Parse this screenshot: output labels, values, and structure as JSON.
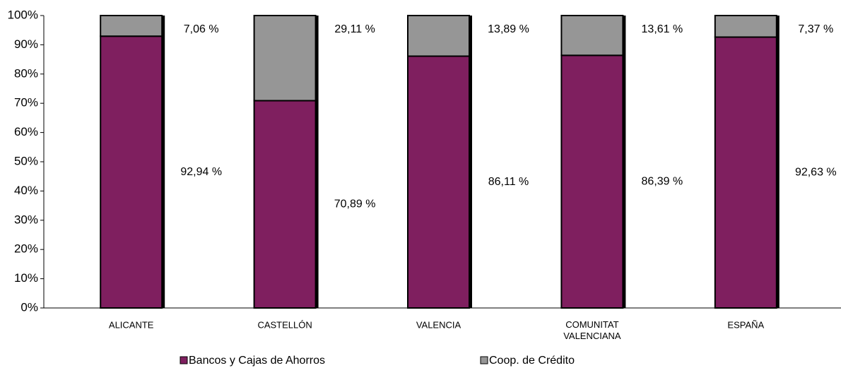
{
  "chart_data": {
    "type": "stacked_bar",
    "categories": [
      "ALICANTE",
      "CASTELLÓN",
      "VALENCIA",
      "COMUNITAT VALENCIANA",
      "ESPAÑA"
    ],
    "series": [
      {
        "name": "Bancos y Cajas de Ahorros",
        "color": "#7f1f5f",
        "values": [
          92.94,
          70.89,
          86.11,
          86.39,
          92.63
        ],
        "value_labels": [
          "92,94 %",
          "70,89 %",
          "86,11 %",
          "86,39 %",
          "92,63 %"
        ]
      },
      {
        "name": "Coop. de Crédito",
        "color": "#969696",
        "values": [
          7.06,
          29.11,
          13.89,
          13.61,
          7.37
        ],
        "value_labels": [
          "7,06 %",
          "29,11 %",
          "13,89 %",
          "13,61 %",
          "7,37 %"
        ]
      }
    ],
    "ylim": [
      0,
      100
    ],
    "yticks": [
      {
        "value": 0,
        "label": "0%"
      },
      {
        "value": 10,
        "label": "10%"
      },
      {
        "value": 20,
        "label": "20%"
      },
      {
        "value": 30,
        "label": "30%"
      },
      {
        "value": 40,
        "label": "40%"
      },
      {
        "value": 50,
        "label": "50%"
      },
      {
        "value": 60,
        "label": "60%"
      },
      {
        "value": 70,
        "label": "70%"
      },
      {
        "value": 80,
        "label": "80%"
      },
      {
        "value": 90,
        "label": "90%"
      },
      {
        "value": 100,
        "label": "100%"
      }
    ],
    "legend": "bottom"
  }
}
